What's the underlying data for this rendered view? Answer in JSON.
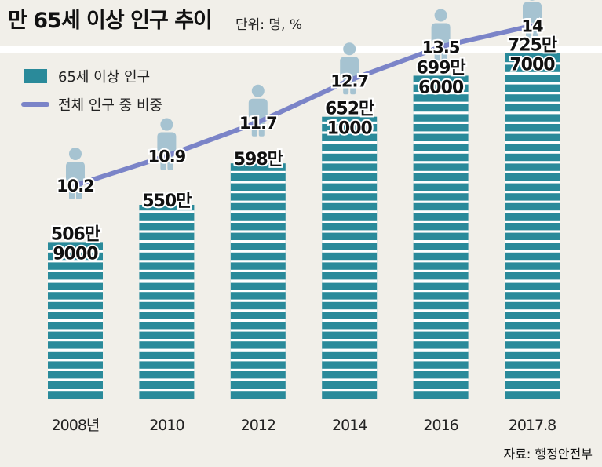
{
  "header": {
    "title": "만 65세 이상 인구 추이",
    "unit": "단위: 명, %"
  },
  "source": "자료: 행정안전부",
  "chart_data": {
    "type": "bar",
    "categories": [
      "2008년",
      "2010",
      "2012",
      "2014",
      "2016",
      "2017.8"
    ],
    "series": [
      {
        "name": "65세 이상 인구",
        "type": "bar",
        "values": [
          5069000,
          5500000,
          5980000,
          6521000,
          6996000,
          7257000
        ],
        "labels": [
          [
            "506만",
            "9000"
          ],
          [
            "550만"
          ],
          [
            "598만"
          ],
          [
            "652만",
            "1000"
          ],
          [
            "699만",
            "6000"
          ],
          [
            "725만",
            "7000"
          ]
        ],
        "color": "#2a8a9a"
      },
      {
        "name": "전체 인구 중 비중",
        "type": "line",
        "values": [
          10.2,
          10.9,
          11.7,
          12.7,
          13.5,
          14
        ],
        "labels": [
          "10.2",
          "10.9",
          "11.7",
          "12.7",
          "13.5",
          "14"
        ],
        "color": "#7b84c8"
      }
    ],
    "grid": false,
    "legend": "top-left"
  }
}
